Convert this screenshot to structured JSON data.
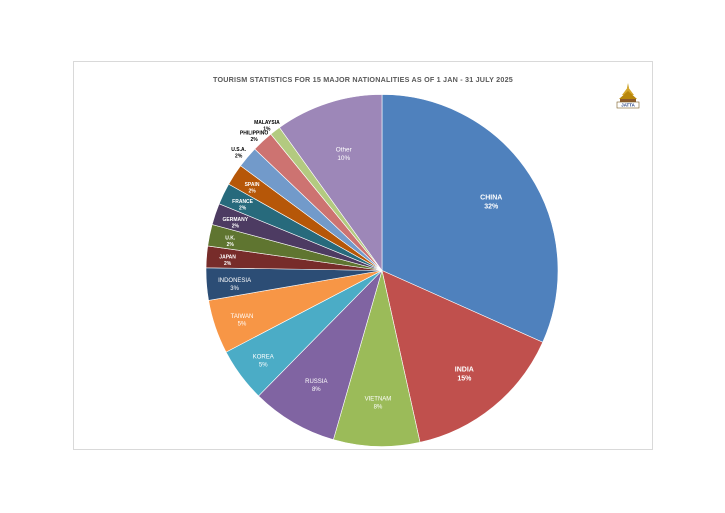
{
  "chart_data": {
    "type": "pie",
    "title": "TOURISM STATISTICS FOR 15 MAJOR NATIONALITIES AS OF 1 JAN - 31 JULY 2025",
    "slices": [
      {
        "label": "CHINA",
        "value": 32,
        "pct_text": "32%",
        "color": "#4f81bd"
      },
      {
        "label": "INDIA",
        "value": 15,
        "pct_text": "15%",
        "color": "#c0504d"
      },
      {
        "label": "VIETNAM",
        "value": 8,
        "pct_text": "8%",
        "color": "#9bbb59"
      },
      {
        "label": "RUSSIA",
        "value": 8,
        "pct_text": "8%",
        "color": "#8064a2"
      },
      {
        "label": "KOREA",
        "value": 5,
        "pct_text": "5%",
        "color": "#4bacc6"
      },
      {
        "label": "TAIWAN",
        "value": 5,
        "pct_text": "5%",
        "color": "#f79646"
      },
      {
        "label": "INDONESIA",
        "value": 3,
        "pct_text": "3%",
        "color": "#2c4d75"
      },
      {
        "label": "JAPAN",
        "value": 2,
        "pct_text": "2%",
        "color": "#772c2a"
      },
      {
        "label": "U.K.",
        "value": 2,
        "pct_text": "2%",
        "color": "#5f7530"
      },
      {
        "label": "GERMANY",
        "value": 2,
        "pct_text": "2%",
        "color": "#4d3b62"
      },
      {
        "label": "FRANCE",
        "value": 2,
        "pct_text": "2%",
        "color": "#276a7c"
      },
      {
        "label": "SPAIN",
        "value": 2,
        "pct_text": "2%",
        "color": "#b65708"
      },
      {
        "label": "U.S.A.",
        "value": 2,
        "pct_text": "2%",
        "color": "#729aca"
      },
      {
        "label": "PHILIPPINO",
        "value": 2,
        "pct_text": "2%",
        "color": "#cd7371"
      },
      {
        "label": "MALAYSIA",
        "value": 1,
        "pct_text": "1%",
        "color": "#b3ca80"
      },
      {
        "label": "Other",
        "value": 10,
        "pct_text": "10%",
        "color": "#9d87b8"
      }
    ]
  },
  "logo": {
    "text": "JATTA",
    "icon": "temple-logo-icon"
  }
}
